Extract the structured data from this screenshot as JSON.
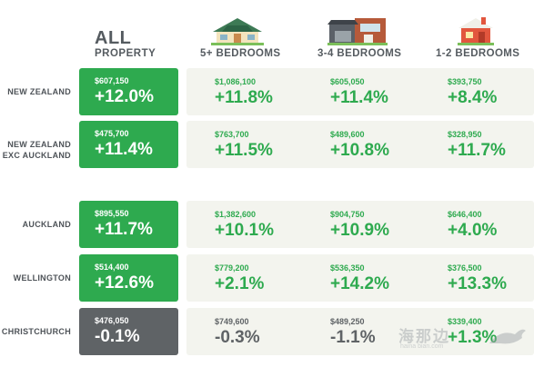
{
  "header": {
    "all_title": "ALL",
    "all_subtitle": "PROPERTY",
    "columns": [
      {
        "label": "5+ BEDROOMS",
        "icon": "large-house-icon"
      },
      {
        "label": "3-4 BEDROOMS",
        "icon": "modern-house-icon"
      },
      {
        "label": "1-2 BEDROOMS",
        "icon": "small-house-icon"
      }
    ]
  },
  "rows": [
    {
      "label_line1": "NEW ZEALAND",
      "label_line2": "",
      "all": {
        "price": "$607,150",
        "change": "+12.0%"
      },
      "bed5": {
        "price": "$1,086,100",
        "change": "+11.8%"
      },
      "bed34": {
        "price": "$605,050",
        "change": "+11.4%"
      },
      "bed12": {
        "price": "$393,750",
        "change": "+8.4%"
      }
    },
    {
      "label_line1": "NEW ZEALAND",
      "label_line2": "EXC AUCKLAND",
      "all": {
        "price": "$475,700",
        "change": "+11.4%"
      },
      "bed5": {
        "price": "$763,700",
        "change": "+11.5%"
      },
      "bed34": {
        "price": "$489,600",
        "change": "+10.8%"
      },
      "bed12": {
        "price": "$328,950",
        "change": "+11.7%"
      }
    },
    {
      "label_line1": "AUCKLAND",
      "label_line2": "",
      "all": {
        "price": "$895,550",
        "change": "+11.7%"
      },
      "bed5": {
        "price": "$1,382,600",
        "change": "+10.1%"
      },
      "bed34": {
        "price": "$904,750",
        "change": "+10.9%"
      },
      "bed12": {
        "price": "$646,400",
        "change": "+4.0%"
      }
    },
    {
      "label_line1": "WELLINGTON",
      "label_line2": "",
      "all": {
        "price": "$514,400",
        "change": "+12.6%"
      },
      "bed5": {
        "price": "$779,200",
        "change": "+2.1%"
      },
      "bed34": {
        "price": "$536,350",
        "change": "+14.2%"
      },
      "bed12": {
        "price": "$376,500",
        "change": "+13.3%"
      }
    },
    {
      "label_line1": "CHRISTCHURCH",
      "label_line2": "",
      "all": {
        "price": "$476,050",
        "change": "-0.1%"
      },
      "bed5": {
        "price": "$749,600",
        "change": "-0.3%"
      },
      "bed34": {
        "price": "$489,250",
        "change": "-1.1%"
      },
      "bed12": {
        "price": "$339,400",
        "change": "+1.3%"
      }
    }
  ],
  "colors": {
    "positive": "#2eaa4f",
    "negative": "#5f6366",
    "panel": "#f3f4ee"
  },
  "watermark": {
    "text": "海那边",
    "sub": "haina bian.com"
  }
}
